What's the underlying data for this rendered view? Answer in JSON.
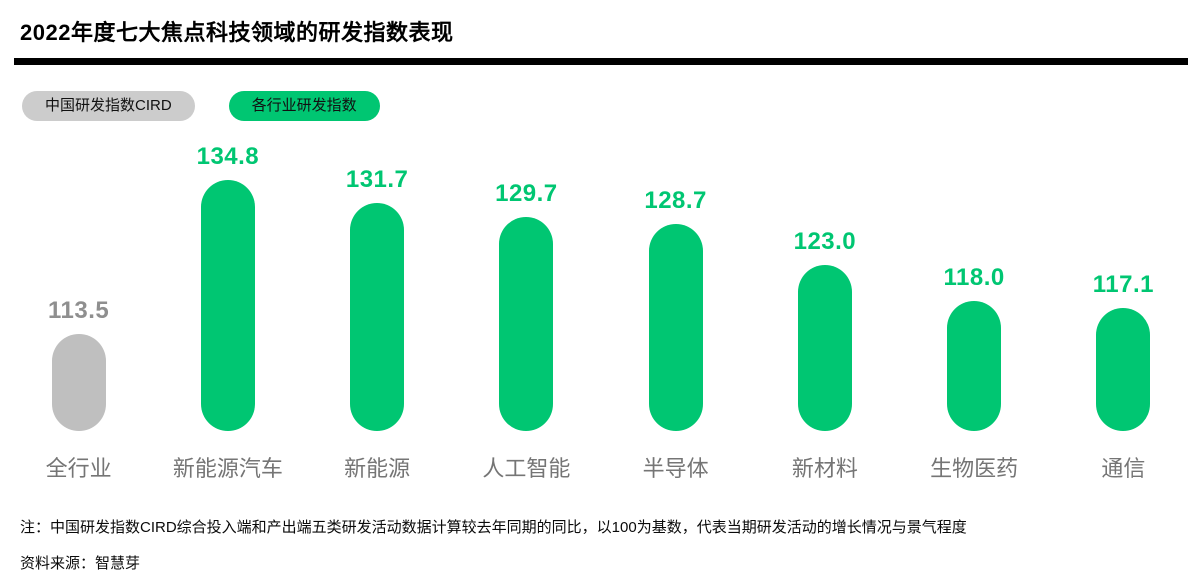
{
  "header": {
    "title": "2022年度七大焦点科技领域的研发指数表现"
  },
  "legend": {
    "items": [
      {
        "label": "中国研发指数CIRD",
        "bg_color": "#cccccc",
        "text_color": "#111111"
      },
      {
        "label": "各行业研发指数",
        "bg_color": "#00c672",
        "text_color": "#111111"
      }
    ]
  },
  "chart_data": {
    "type": "bar",
    "title": "2022年度七大焦点科技领域的研发指数表现",
    "categories": [
      "全行业",
      "新能源汽车",
      "新能源",
      "人工智能",
      "半导体",
      "新材料",
      "生物医药",
      "通信"
    ],
    "values": [
      113.5,
      134.8,
      131.7,
      129.7,
      128.7,
      123.0,
      118.0,
      117.1
    ],
    "value_labels": [
      "113.5",
      "134.8",
      "131.7",
      "129.7",
      "128.7",
      "123.0",
      "118.0",
      "117.1"
    ],
    "series": [
      {
        "name": "中国研发指数CIRD",
        "categories": [
          "全行业"
        ],
        "values": [
          113.5
        ]
      },
      {
        "name": "各行业研发指数",
        "categories": [
          "新能源汽车",
          "新能源",
          "人工智能",
          "半导体",
          "新材料",
          "生物医药",
          "通信"
        ],
        "values": [
          134.8,
          131.7,
          129.7,
          128.7,
          123.0,
          118.0,
          117.1
        ]
      }
    ],
    "baseline_value": 100,
    "bar_style": "capsule",
    "grid": false,
    "axes_shown": false,
    "data_labels_position": "above-bar",
    "colors": {
      "bar_gray": "#bfbfbf",
      "bar_green": "#00c672",
      "value_label_gray": "#8f8f8f",
      "value_label_green": "#00c672",
      "category_label": "#757575"
    }
  },
  "footer": {
    "note": "注：中国研发指数CIRD综合投入端和产出端五类研发活动数据计算较去年同期的同比，以100为基数，代表当期研发活动的增长情况与景气程度",
    "source": "资料来源：智慧芽"
  }
}
